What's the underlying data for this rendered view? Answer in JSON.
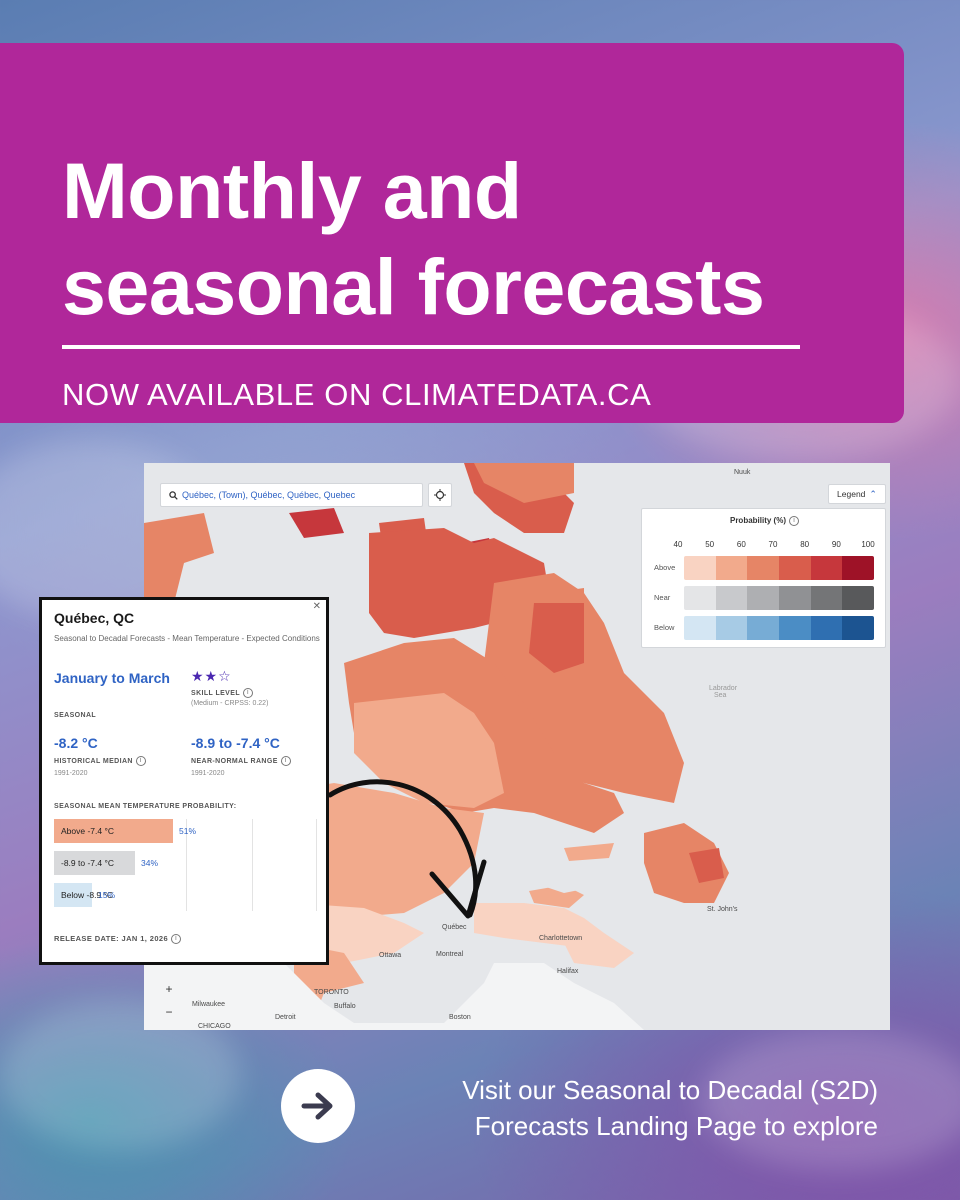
{
  "banner": {
    "title_line1": "Monthly and",
    "title_line2": "seasonal forecasts",
    "subtitle": "NOW AVAILABLE ON CLIMATEDATA.CA",
    "color": "#b0279a"
  },
  "map": {
    "search_value": "Québec, (Town), Québec, Québec, Quebec",
    "search_icon": "search-icon",
    "locate_icon": "crosshair-icon",
    "legend_button": "Legend",
    "legend": {
      "title": "Probability (%)",
      "ticks": [
        "40",
        "50",
        "60",
        "70",
        "80",
        "90",
        "100"
      ],
      "rows": [
        {
          "label": "Above",
          "colors": [
            "#f9d3c2",
            "#f2aa8c",
            "#e68566",
            "#d95d4c",
            "#c6373c",
            "#9e1227"
          ]
        },
        {
          "label": "Near",
          "colors": [
            "#e4e5e7",
            "#c8c9cc",
            "#aeafb2",
            "#909194",
            "#747577",
            "#58595b"
          ]
        },
        {
          "label": "Below",
          "colors": [
            "#d4e6f3",
            "#a7cbe5",
            "#77acd5",
            "#4b8dc5",
            "#2f6fb1",
            "#1c5491"
          ]
        }
      ]
    },
    "places": {
      "nuuk": "Nuuk",
      "labrador_sea": "Labrador",
      "labrador_sea2": "Sea",
      "st_johns": "St. John's",
      "quebec": "Québec",
      "charlottetown": "Charlottetown",
      "ottawa": "Ottawa",
      "montreal": "Montreal",
      "halifax": "Halifax",
      "toronto": "TORONTO",
      "buffalo": "Buffalo",
      "milwaukee": "Milwaukee",
      "chicago": "CHICAGO",
      "detroit": "Detroit",
      "boston": "Boston"
    },
    "zoom_in": "+",
    "zoom_out": "−"
  },
  "popup": {
    "title": "Québec, QC",
    "description": "Seasonal to Decadal Forecasts - Mean Temperature - Expected Conditions",
    "period": "January to March",
    "period_type": "SEASONAL",
    "stars": "★★☆",
    "skill_label": "SKILL LEVEL",
    "skill_detail": "(Medium - CRPSS: 0.22)",
    "median_value": "-8.2 °C",
    "median_label": "HISTORICAL MEDIAN",
    "median_years": "1991-2020",
    "range_value": "-8.9 to -7.4 °C",
    "range_label": "NEAR-NORMAL RANGE",
    "range_years": "1991-2020",
    "prob_heading": "SEASONAL MEAN TEMPERATURE PROBABILITY:",
    "bars": [
      {
        "label": "Above -7.4 °C",
        "percent": 51,
        "percent_text": "51%",
        "color": "#f2aa8c"
      },
      {
        "label": "-8.9 to -7.4 °C",
        "percent": 34,
        "percent_text": "34%",
        "color": "#d8d9db"
      },
      {
        "label": "Below -8.9 °C",
        "percent": 15,
        "percent_text": "15%",
        "color": "#d4e6f3"
      }
    ],
    "release": "RELEASE DATE: JAN 1, 2026",
    "close_icon": "close-icon"
  },
  "cta": {
    "icon": "arrow-right-icon",
    "line1": "Visit our Seasonal to Decadal (S2D)",
    "line2": "Forecasts Landing Page to explore"
  }
}
